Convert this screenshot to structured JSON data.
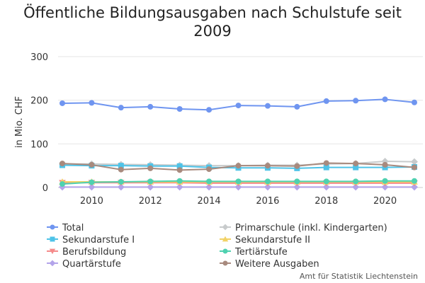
{
  "chart_data": {
    "type": "line",
    "title": "Öffentliche Bildungsausgaben nach Schulstufe seit 2009",
    "title_lines": [
      "Öffentliche Bildungsausgaben nach Schulstufe seit",
      "2009"
    ],
    "xlabel": "",
    "ylabel": "in Mio. CHF",
    "x": [
      2009,
      2010,
      2011,
      2012,
      2013,
      2014,
      2015,
      2016,
      2017,
      2018,
      2019,
      2020,
      2021
    ],
    "x_ticks": [
      2010,
      2012,
      2014,
      2016,
      2018,
      2020
    ],
    "y_ticks": [
      0,
      100,
      200,
      300
    ],
    "xlim": [
      2009,
      2021
    ],
    "ylim": [
      0,
      300
    ],
    "grid": "horizontal",
    "legend_position": "bottom",
    "series": [
      {
        "name": "Total",
        "color": "#6f95f0",
        "marker": "circle",
        "values": [
          193,
          194,
          183,
          185,
          180,
          178,
          188,
          187,
          185,
          198,
          199,
          202,
          195
        ]
      },
      {
        "name": "Primarschule (inkl. Kindergarten)",
        "color": "#c8cbcc",
        "marker": "diamond",
        "values": [
          54,
          54,
          53,
          52,
          51,
          50,
          50,
          51,
          51,
          54,
          55,
          60,
          59
        ]
      },
      {
        "name": "Sekundarstufe I",
        "color": "#4ec3e8",
        "marker": "square",
        "values": [
          51,
          50,
          50,
          49,
          49,
          46,
          45,
          45,
          44,
          46,
          46,
          46,
          47
        ]
      },
      {
        "name": "Sekundarstufe II",
        "color": "#f2d265",
        "marker": "triangle",
        "values": [
          13,
          13,
          13,
          13,
          13,
          13,
          13,
          13,
          13,
          13,
          13,
          13,
          13
        ]
      },
      {
        "name": "Berufsbildung",
        "color": "#f58b8b",
        "marker": "triangle-down",
        "values": [
          11,
          11,
          11,
          11,
          11,
          10,
          10,
          10,
          10,
          10,
          10,
          10,
          10
        ]
      },
      {
        "name": "Tertiärstufe",
        "color": "#4fd1b0",
        "marker": "circle",
        "values": [
          8,
          12,
          13,
          14,
          15,
          14,
          14,
          14,
          14,
          14,
          14,
          15,
          15
        ]
      },
      {
        "name": "Quartärstufe",
        "color": "#b3a4ea",
        "marker": "diamond",
        "values": [
          1,
          1,
          1,
          1,
          1,
          1,
          1,
          1,
          1,
          1,
          1,
          1,
          1
        ]
      },
      {
        "name": "Weitere Ausgaben",
        "color": "#a88a7e",
        "marker": "circle",
        "values": [
          55,
          52,
          41,
          44,
          40,
          42,
          50,
          50,
          49,
          56,
          55,
          52,
          46
        ]
      }
    ]
  },
  "source_credit": "Amt für Statistik Liechtenstein"
}
